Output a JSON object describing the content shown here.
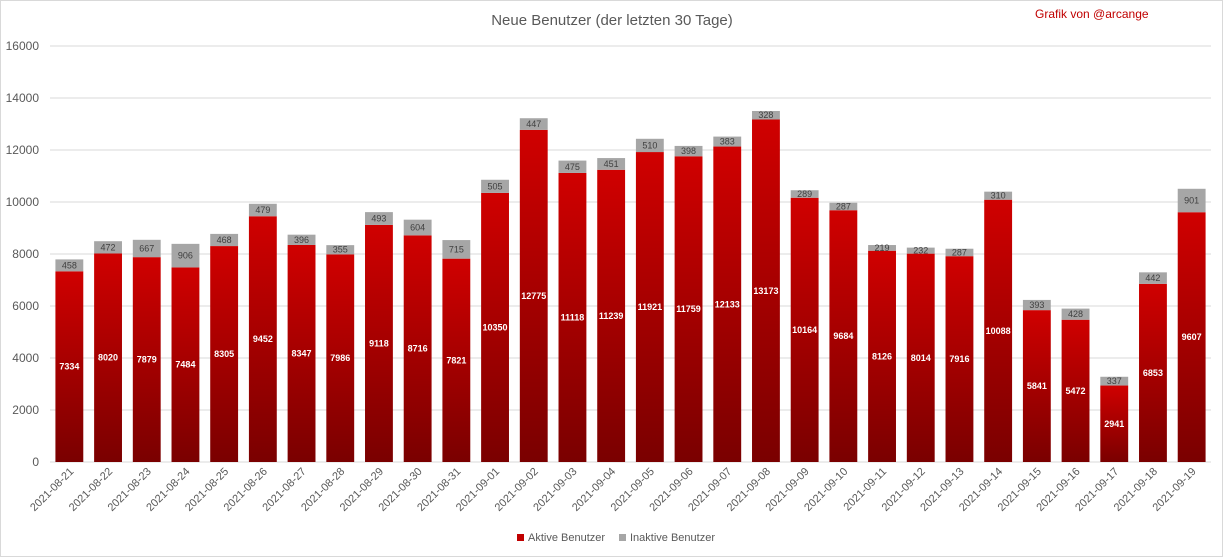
{
  "chart_data": {
    "type": "bar",
    "stacked": true,
    "title": "Neue Benutzer (der letzten 30 Tage)",
    "credit": "Grafik von @arcange",
    "categories": [
      "2021-08-21",
      "2021-08-22",
      "2021-08-23",
      "2021-08-24",
      "2021-08-25",
      "2021-08-26",
      "2021-08-27",
      "2021-08-28",
      "2021-08-29",
      "2021-08-30",
      "2021-08-31",
      "2021-09-01",
      "2021-09-02",
      "2021-09-03",
      "2021-09-04",
      "2021-09-05",
      "2021-09-06",
      "2021-09-07",
      "2021-09-08",
      "2021-09-09",
      "2021-09-10",
      "2021-09-11",
      "2021-09-12",
      "2021-09-13",
      "2021-09-14",
      "2021-09-15",
      "2021-09-16",
      "2021-09-17",
      "2021-09-18",
      "2021-09-19"
    ],
    "series": [
      {
        "name": "Aktive Benutzer",
        "color": "#c00000",
        "values": [
          7334,
          8020,
          7879,
          7484,
          8305,
          9452,
          8347,
          7986,
          9118,
          8716,
          7821,
          10350,
          12775,
          11118,
          11239,
          11921,
          11759,
          12133,
          13173,
          10164,
          9684,
          8126,
          8014,
          7916,
          10088,
          5841,
          5472,
          2941,
          6853,
          9607
        ]
      },
      {
        "name": "Inaktive Benutzer",
        "color": "#a6a6a6",
        "values": [
          458,
          472,
          667,
          906,
          468,
          479,
          396,
          355,
          493,
          604,
          715,
          505,
          447,
          475,
          451,
          510,
          398,
          383,
          328,
          289,
          287,
          219,
          232,
          287,
          310,
          393,
          428,
          337,
          442,
          901
        ]
      }
    ],
    "yticks": [
      "0",
      "2000",
      "4000",
      "6000",
      "8000",
      "10000",
      "12000",
      "14000",
      "16000"
    ],
    "ylim": [
      0,
      16000
    ],
    "grid": true,
    "legend_position": "bottom"
  }
}
